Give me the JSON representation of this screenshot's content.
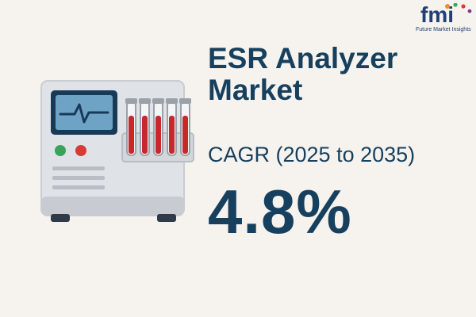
{
  "logo": {
    "brand": "fmi",
    "tagline": "Future Market Insights",
    "colors": {
      "primary": "#1f3f75",
      "dot_orange": "#f28c28",
      "dot_green": "#3aa85c",
      "dot_red": "#d83a3a",
      "dot_purple": "#7a3d9a"
    }
  },
  "title": {
    "line1": "ESR Analyzer",
    "line2": "Market"
  },
  "cagr": {
    "label": "CAGR (2025 to 2035)",
    "value": "4.8%"
  },
  "illustration": {
    "icon": "esr-analyzer-device-icon",
    "tube_count": 5,
    "colors": {
      "body": "#dfe2e6",
      "screen": "#6fa3c6",
      "tube_fill": "#c6282e",
      "button_green": "#3aa35b",
      "button_red": "#d63b36"
    }
  },
  "theme": {
    "background": "#f6f3ee",
    "text": "#17405e"
  }
}
